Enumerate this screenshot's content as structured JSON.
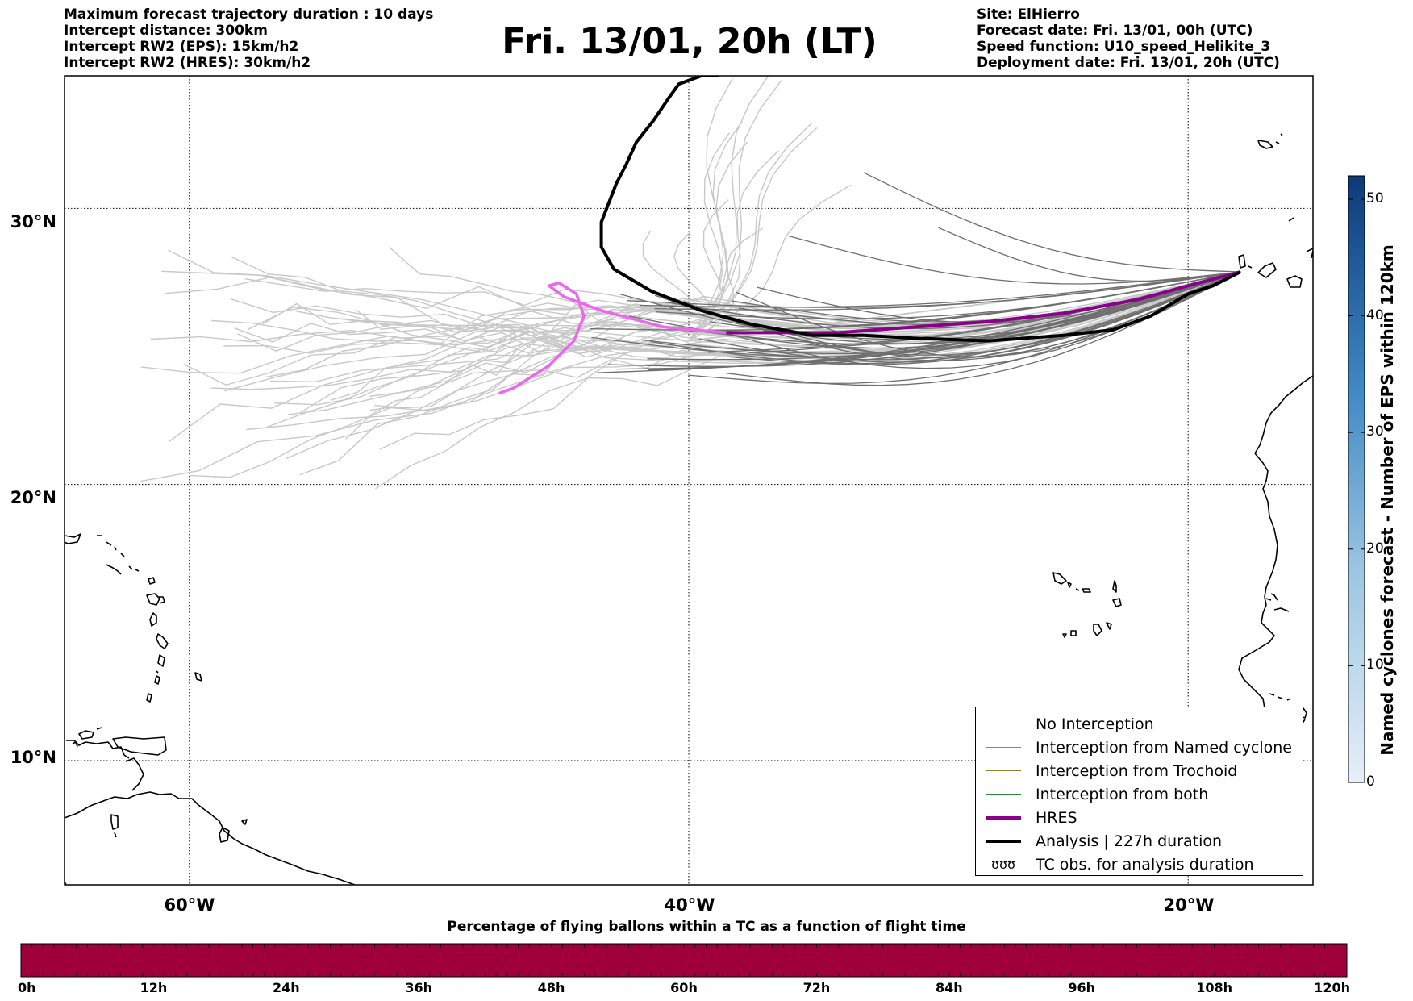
{
  "header": {
    "left_lines": [
      "Maximum forecast trajectory duration : 10 days",
      "Intercept distance: 300km",
      "Intercept RW2 (EPS):  15km/h2",
      "Intercept RW2 (HRES): 30km/h2"
    ],
    "title": "Fri. 13/01, 20h (LT)",
    "right_lines": [
      "Site: ElHierro",
      "Forecast date: Fri. 13/01, 00h (UTC)",
      "Speed function: U10_speed_Helikite_3",
      "Deployment date: Fri. 13/01, 20h (UTC)"
    ]
  },
  "map": {
    "lat_labels": [
      "30°N",
      "20°N",
      "10°N"
    ],
    "lon_labels": [
      "60°W",
      "40°W",
      "20°W"
    ],
    "lat_values": [
      30,
      20,
      10
    ],
    "lon_values": [
      -60,
      -40,
      -20
    ],
    "lon_range": [
      -65,
      -15
    ],
    "lat_range": [
      5.5,
      34.8
    ],
    "grid": "dotted",
    "colors": {
      "no_interception": "#6e6e6e",
      "eps_light": "#c8c8c8",
      "named_cyclone": "#e8622a",
      "trochoid": "#8a8a2a",
      "both": "#2a8a3a",
      "hres": "#8b008b",
      "hres_light": "#ee66ee",
      "analysis": "#000000"
    }
  },
  "legend": {
    "placement": "lower-right",
    "items": [
      {
        "label": "No Interception",
        "color": "#6e6e6e",
        "style": "thin"
      },
      {
        "label": "Interception from Named cyclone",
        "color": "#e8622a",
        "style": "thin"
      },
      {
        "label": "Interception from Trochoid",
        "color": "#8a8a2a",
        "style": "thin"
      },
      {
        "label": "Interception from both",
        "color": "#2a8a3a",
        "style": "thin"
      },
      {
        "label": "HRES",
        "color": "#8b008b",
        "style": "thick"
      },
      {
        "label": "Analysis | 227h duration",
        "color": "#000000",
        "style": "thick"
      },
      {
        "label": "TC obs. for analysis duration",
        "color": "#000000",
        "style": "glyph",
        "glyph": "ʊʊʊ"
      }
    ]
  },
  "colorbar": {
    "title": "Named cyclones forecast - Number of EPS within 120km",
    "ticks": [
      "0",
      "10",
      "20",
      "30",
      "40",
      "50"
    ],
    "tick_values": [
      0,
      10,
      20,
      30,
      40,
      50
    ],
    "range": [
      0,
      52
    ],
    "color_low": "#e6eff9",
    "color_high": "#0b3b78"
  },
  "bottom_bar": {
    "title": "Percentage of flying ballons within a TC as a function of flight time",
    "ticks": [
      "0h",
      "12h",
      "24h",
      "36h",
      "48h",
      "60h",
      "72h",
      "84h",
      "96h",
      "108h",
      "120h"
    ],
    "color": "#a0003a"
  }
}
